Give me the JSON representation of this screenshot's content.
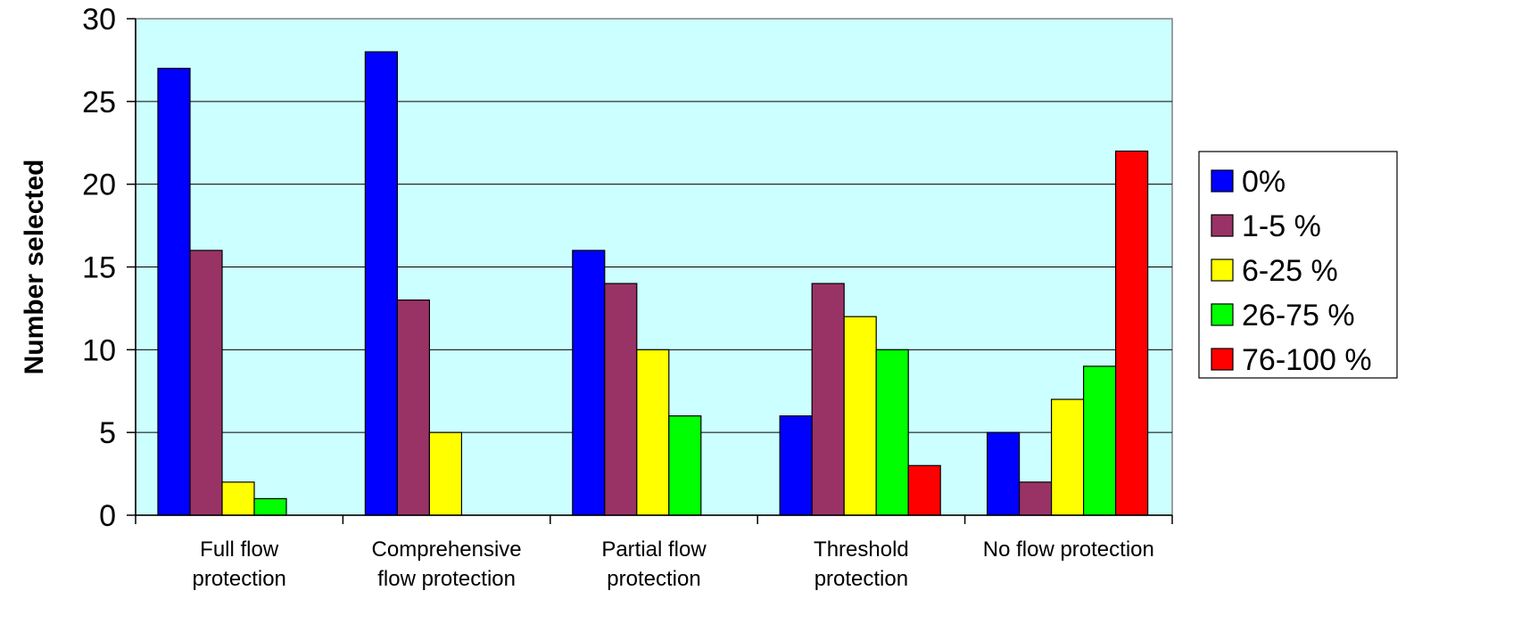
{
  "chart_data": {
    "type": "bar",
    "title": "",
    "xlabel": "",
    "ylabel": "Number selected",
    "ylim": [
      0,
      30
    ],
    "yticks": [
      "0",
      "5",
      "10",
      "15",
      "20",
      "25",
      "30"
    ],
    "grid": true,
    "plot_background": "#ccffff",
    "legend_position": "right",
    "categories": [
      [
        "Full flow",
        "protection"
      ],
      [
        "Comprehensive",
        "flow protection"
      ],
      [
        "Partial flow",
        "protection"
      ],
      [
        "Threshold",
        "protection"
      ],
      [
        "No flow protection"
      ]
    ],
    "series": [
      {
        "name": "0%",
        "color": "#0000ff",
        "values": [
          27,
          28,
          16,
          6,
          5
        ]
      },
      {
        "name": "1-5 %",
        "color": "#993366",
        "values": [
          16,
          13,
          14,
          14,
          2
        ]
      },
      {
        "name": "6-25 %",
        "color": "#ffff00",
        "values": [
          2,
          5,
          10,
          12,
          7
        ]
      },
      {
        "name": "26-75 %",
        "color": "#00ff00",
        "values": [
          1,
          0,
          6,
          10,
          9
        ]
      },
      {
        "name": "76-100 %",
        "color": "#ff0000",
        "values": [
          0,
          0,
          0,
          3,
          22
        ]
      }
    ]
  }
}
